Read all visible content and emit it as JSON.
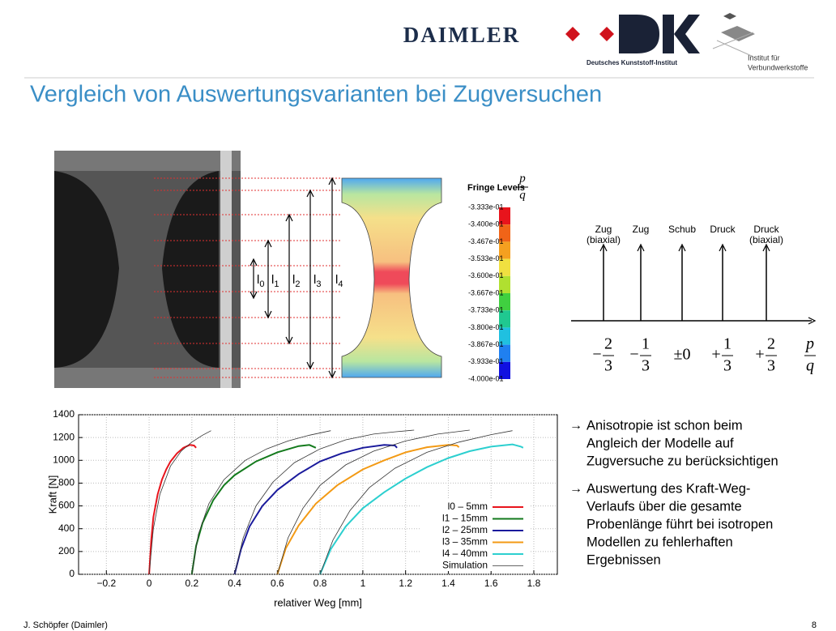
{
  "header": {
    "logo_daimler": "DAIMLER",
    "logo_dki": "Deutsches Kunststoff-Institut",
    "logo_ivw_1": "Institut für",
    "logo_ivw_2": "Verbundwerkstoffe"
  },
  "title": "Vergleich von Auswertungsvarianten bei Zugversuchen",
  "segment_labels": [
    {
      "letter": "l",
      "index": "0"
    },
    {
      "letter": "l",
      "index": "1"
    },
    {
      "letter": "l",
      "index": "2"
    },
    {
      "letter": "l",
      "index": "3"
    },
    {
      "letter": "l",
      "index": "4"
    }
  ],
  "fringe": {
    "title": "Fringe Levels",
    "ratio": {
      "num": "p",
      "den": "q"
    },
    "levels": [
      "-3.333e-01",
      "-3.400e-01",
      "-3.467e-01",
      "-3.533e-01",
      "-3.600e-01",
      "-3.667e-01",
      "-3.733e-01",
      "-3.800e-01",
      "-3.867e-01",
      "-3.933e-01",
      "-4.000e-01"
    ]
  },
  "stress_axis": {
    "states": [
      {
        "line1": "Zug",
        "line2": "(biaxial)"
      },
      {
        "line1": "Zug"
      },
      {
        "line1": "Schub"
      },
      {
        "line1": "Druck"
      },
      {
        "line1": "Druck",
        "line2": "(biaxial)"
      }
    ],
    "ticks": [
      {
        "sign": "−",
        "num": "2",
        "den": "3"
      },
      {
        "sign": "−",
        "num": "1",
        "den": "3"
      },
      {
        "text": "±0"
      },
      {
        "sign": "+",
        "num": "1",
        "den": "3"
      },
      {
        "sign": "+",
        "num": "2",
        "den": "3"
      }
    ],
    "axis_label": {
      "num": "p",
      "den": "q"
    }
  },
  "chart_data": {
    "type": "line",
    "x_label": "relativer Weg [mm]",
    "y_label": "Kraft [N]",
    "xlim": [
      -0.33,
      1.91
    ],
    "ylim": [
      0,
      1400
    ],
    "xticks": [
      {
        "value": -0.2,
        "label": "−0.2"
      },
      0,
      0.2,
      0.4,
      0.6,
      0.8,
      1,
      1.2,
      1.4,
      1.6,
      1.8
    ],
    "yticks": [
      0,
      200,
      400,
      600,
      800,
      1000,
      1200,
      1400
    ],
    "grid": true,
    "legend": "lower-right",
    "series": [
      {
        "name": "l0 – 5mm",
        "color": "#e8141c",
        "x": [
          0,
          0.01,
          0.02,
          0.04,
          0.06,
          0.08,
          0.1,
          0.13,
          0.16,
          0.19,
          0.21,
          0.22
        ],
        "values": [
          0,
          300,
          500,
          700,
          830,
          920,
          990,
          1060,
          1110,
          1135,
          1130,
          1110
        ]
      },
      {
        "name": "l1 – 15mm",
        "color": "#137a1c",
        "x": [
          0.2,
          0.22,
          0.25,
          0.3,
          0.35,
          0.4,
          0.5,
          0.6,
          0.7,
          0.75,
          0.78
        ],
        "values": [
          0,
          250,
          450,
          650,
          780,
          870,
          990,
          1070,
          1125,
          1135,
          1110
        ]
      },
      {
        "name": "l2 – 25mm",
        "color": "#1a1a9c",
        "x": [
          0.4,
          0.43,
          0.47,
          0.53,
          0.6,
          0.7,
          0.8,
          0.9,
          1.0,
          1.1,
          1.15,
          1.16
        ],
        "values": [
          0,
          220,
          420,
          600,
          740,
          880,
          990,
          1060,
          1110,
          1135,
          1130,
          1110
        ]
      },
      {
        "name": "l3 – 35mm",
        "color": "#f39a14",
        "x": [
          0.6,
          0.64,
          0.7,
          0.78,
          0.88,
          1.0,
          1.1,
          1.2,
          1.3,
          1.4,
          1.44,
          1.45
        ],
        "values": [
          0,
          230,
          430,
          620,
          780,
          920,
          1000,
          1070,
          1115,
          1135,
          1130,
          1115
        ]
      },
      {
        "name": "l4 – 40mm",
        "color": "#2ccfcf",
        "x": [
          0.8,
          0.85,
          0.92,
          1.0,
          1.1,
          1.2,
          1.3,
          1.4,
          1.5,
          1.6,
          1.7,
          1.74,
          1.75
        ],
        "values": [
          0,
          220,
          420,
          580,
          720,
          840,
          940,
          1020,
          1080,
          1120,
          1140,
          1120,
          1110
        ]
      },
      {
        "name": "Simulation",
        "color": "#333333",
        "x": [
          0,
          0.02,
          0.05,
          0.1,
          0.15,
          0.2,
          0.25,
          0.29,
          null,
          0.2,
          0.23,
          0.28,
          0.35,
          0.45,
          0.55,
          0.65,
          0.75,
          0.85,
          null,
          0.4,
          0.44,
          0.5,
          0.58,
          0.68,
          0.8,
          0.92,
          1.05,
          1.15,
          1.24,
          null,
          0.6,
          0.65,
          0.72,
          0.8,
          0.92,
          1.05,
          1.2,
          1.35,
          1.5,
          null,
          0.8,
          0.86,
          0.94,
          1.03,
          1.15,
          1.3,
          1.45,
          1.6,
          1.7
        ],
        "values": [
          0,
          400,
          700,
          950,
          1080,
          1160,
          1220,
          1260,
          null,
          0,
          350,
          620,
          830,
          1000,
          1100,
          1170,
          1220,
          1260,
          null,
          0,
          320,
          600,
          810,
          980,
          1100,
          1180,
          1230,
          1250,
          1265,
          null,
          0,
          320,
          580,
          780,
          960,
          1080,
          1170,
          1230,
          1265,
          null,
          0,
          300,
          560,
          760,
          930,
          1070,
          1160,
          1225,
          1260
        ]
      }
    ]
  },
  "bullets": [
    [
      "→",
      "Anisotropie ist schon beim",
      "Angleich der Modelle auf",
      "Zugversuche zu berücksichtigen"
    ],
    [
      "→",
      "Auswertung des Kraft-Weg-",
      "Verlaufs über die gesamte",
      "Probenlänge führt bei isotropen",
      "Modellen zu fehlerhaften",
      "Ergebnissen"
    ]
  ],
  "footer": {
    "author": "J. Schöpfer (Daimler)",
    "page": "8"
  }
}
